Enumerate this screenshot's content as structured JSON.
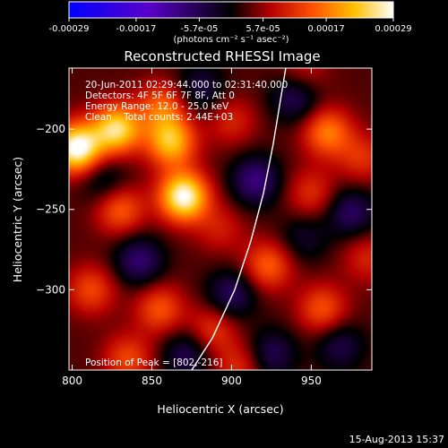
{
  "colorbar": {
    "tick_labels": [
      "-0.00029",
      "-0.00017",
      "-5.7e-05",
      "5.7e-05",
      "0.00017",
      "0.00029"
    ],
    "unit_label": "(photons cm⁻² s⁻¹ asec⁻²)",
    "range": [
      -0.00029,
      0.00029
    ]
  },
  "footer": {
    "date": "15-Aug-2013 15:37"
  },
  "chart_data": {
    "type": "heatmap",
    "title": "Reconstructed RHESSI Image",
    "xlabel": "Heliocentric X (arcsec)",
    "ylabel": "Heliocentric Y (arcsec)",
    "xlim": [
      798,
      988
    ],
    "ylim": [
      -350,
      -162
    ],
    "xticks": [
      800,
      850,
      900,
      950
    ],
    "yticks": [
      -200,
      -250,
      -300
    ],
    "xtick_labels": [
      "800",
      "850",
      "900",
      "950"
    ],
    "ytick_labels": [
      "−200",
      "−250",
      "−300"
    ],
    "annotations": [
      "20-Jun-2011 02:29:44.000 to 02:31:40.000",
      "Detectors: 4F 5F 6F 7F 8F, Att 0",
      "Energy Range: 12.0 - 25.0 keV",
      "Clean    Total counts: 2.44E+03"
    ],
    "peak_label": "Position of Peak = [802,-216]",
    "peak": [
      802,
      -216
    ],
    "limb_curve": [
      [
        875,
        -350
      ],
      [
        888,
        -330
      ],
      [
        902,
        -300
      ],
      [
        912,
        -270
      ],
      [
        920,
        -240
      ],
      [
        926,
        -210
      ],
      [
        931,
        -180
      ],
      [
        934,
        -162
      ]
    ],
    "sources": [
      {
        "x": 803,
        "y": -212,
        "value": 0.00027
      },
      {
        "x": 828,
        "y": -200,
        "value": 0.00022
      },
      {
        "x": 870,
        "y": -242,
        "value": 0.00026
      },
      {
        "x": 862,
        "y": -208,
        "value": 0.00019
      },
      {
        "x": 857,
        "y": -186,
        "value": 0.00012
      },
      {
        "x": 830,
        "y": -250,
        "value": 0.00012
      },
      {
        "x": 812,
        "y": -300,
        "value": 0.0001
      },
      {
        "x": 855,
        "y": -312,
        "value": 0.00011
      },
      {
        "x": 888,
        "y": -325,
        "value": 9e-05
      },
      {
        "x": 835,
        "y": -343,
        "value": 0.0001
      },
      {
        "x": 923,
        "y": -285,
        "value": 0.00012
      },
      {
        "x": 960,
        "y": -202,
        "value": 0.00014
      },
      {
        "x": 950,
        "y": -240,
        "value": 8e-05
      },
      {
        "x": 957,
        "y": -312,
        "value": 0.00011
      },
      {
        "x": 985,
        "y": -280,
        "value": 7e-05
      },
      {
        "x": 982,
        "y": -218,
        "value": 8e-05
      },
      {
        "x": 893,
        "y": -262,
        "value": 6e-05
      },
      {
        "x": 900,
        "y": -195,
        "value": 7e-05
      },
      {
        "x": 905,
        "y": -348,
        "value": 8e-05
      },
      {
        "x": 945,
        "y": -165,
        "value": 6e-05
      },
      {
        "x": 915,
        "y": -232,
        "value": -0.00012
      },
      {
        "x": 900,
        "y": -303,
        "value": -0.0001
      },
      {
        "x": 940,
        "y": -180,
        "value": -0.0001
      },
      {
        "x": 842,
        "y": -282,
        "value": -0.00011
      },
      {
        "x": 975,
        "y": -252,
        "value": -0.0001
      },
      {
        "x": 872,
        "y": -340,
        "value": -9e-05
      },
      {
        "x": 925,
        "y": -340,
        "value": -9e-05
      },
      {
        "x": 820,
        "y": -232,
        "value": -7e-05
      },
      {
        "x": 880,
        "y": -175,
        "value": -8e-05
      },
      {
        "x": 968,
        "y": -335,
        "value": -8e-05
      },
      {
        "x": 945,
        "y": -268,
        "value": -6e-05
      }
    ]
  }
}
